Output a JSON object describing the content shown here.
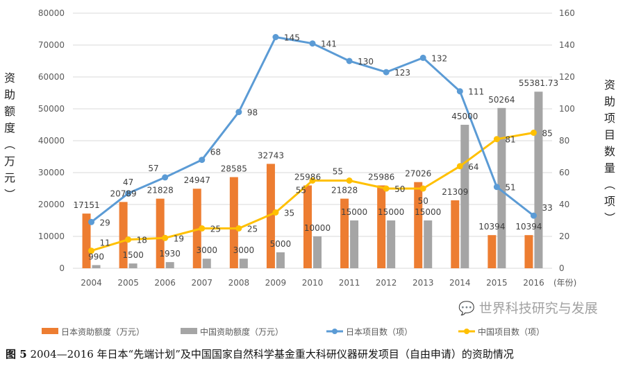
{
  "chart_data": {
    "type": "bar+line",
    "categories": [
      "2004",
      "2005",
      "2006",
      "2007",
      "2008",
      "2009",
      "2010",
      "2011",
      "2012",
      "2013",
      "2014",
      "2015",
      "2016"
    ],
    "x_unit_label": "(年份)",
    "left_axis": {
      "label": "资助额度（万元）",
      "ylim": [
        0,
        80000
      ],
      "ticks": [
        0,
        10000,
        20000,
        30000,
        40000,
        50000,
        60000,
        70000,
        80000
      ]
    },
    "right_axis": {
      "label": "资助项目数量（项）",
      "ylim": [
        0,
        160
      ],
      "ticks": [
        0,
        20,
        40,
        60,
        80,
        100,
        120,
        140,
        160
      ]
    },
    "grid": true,
    "legend_placement": "bottom",
    "series": [
      {
        "name": "日本资助额度（万元）",
        "type": "bar",
        "axis": "left",
        "color": "#ED7D31",
        "values": [
          17151,
          20789,
          21828,
          24947,
          28585,
          32743,
          25986,
          21828,
          25986,
          27026,
          21309,
          10394,
          10394
        ],
        "labels": [
          "17151",
          "20789",
          "21828",
          "24947",
          "28585",
          "32743",
          "25986",
          "21828",
          "25986",
          "27026",
          "21309",
          "10394",
          "10394"
        ]
      },
      {
        "name": "中国资助额度（万元）",
        "type": "bar",
        "axis": "left",
        "color": "#A5A5A5",
        "values": [
          990,
          1500,
          1930,
          3000,
          3000,
          5000,
          10000,
          15000,
          15000,
          15000,
          45000,
          50264,
          55381.73
        ],
        "labels": [
          "990",
          "1500",
          "1930",
          "3000",
          "3000",
          "5000",
          "10000",
          "15000",
          "15000",
          "15000",
          "45000",
          "50264",
          "55381.73"
        ]
      },
      {
        "name": "日本项目数（项）",
        "type": "line",
        "axis": "right",
        "color": "#5B9BD5",
        "values": [
          29,
          47,
          57,
          68,
          98,
          145,
          141,
          130,
          123,
          132,
          111,
          51,
          33
        ],
        "labels": [
          "29",
          "47",
          "57",
          "68",
          "98",
          "145",
          "141",
          "130",
          "123",
          "132",
          "111",
          "51",
          "33"
        ]
      },
      {
        "name": "中国项目数（项）",
        "type": "line",
        "axis": "right",
        "color": "#FFC000",
        "values": [
          11,
          18,
          19,
          25,
          25,
          35,
          55,
          55,
          50,
          50,
          64,
          81,
          85
        ],
        "labels": [
          "11",
          "18",
          "19",
          "25",
          "25",
          "35",
          "55",
          "55",
          "50",
          "50",
          "64",
          "81",
          "85"
        ]
      }
    ]
  },
  "caption": {
    "figure": "图 5",
    "text": " 2004—2016 年日本“先端计划”及中国国家自然科学基金重大科研仪器研发项目（自由申请）的资助情况"
  },
  "watermark": "世界科技研究与发展"
}
